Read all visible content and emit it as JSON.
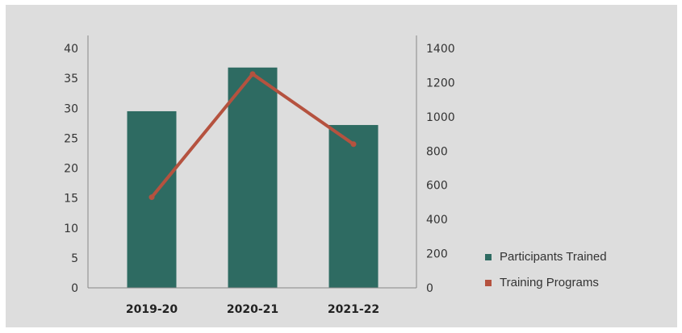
{
  "chart_data": {
    "type": "bar",
    "categories": [
      "2019-20",
      "2020-21",
      "2021-22"
    ],
    "series": [
      {
        "name": "Participants Trained",
        "type": "bar",
        "axis": "left",
        "values": [
          29.5,
          36.8,
          27.2
        ],
        "color": "#2e6b62"
      },
      {
        "name": "Training Programs",
        "type": "line",
        "axis": "right",
        "values": [
          530,
          1250,
          840
        ],
        "color": "#b5523f"
      }
    ],
    "y_left": {
      "ticks": [
        "0",
        "5",
        "10",
        "15",
        "20",
        "25",
        "30",
        "35",
        "40"
      ],
      "range": [
        0,
        40
      ]
    },
    "y_right": {
      "ticks": [
        "0",
        "200",
        "400",
        "600",
        "800",
        "1000",
        "1200",
        "1400"
      ],
      "range": [
        0,
        1400
      ]
    },
    "legend_position": "right",
    "grid": false
  }
}
